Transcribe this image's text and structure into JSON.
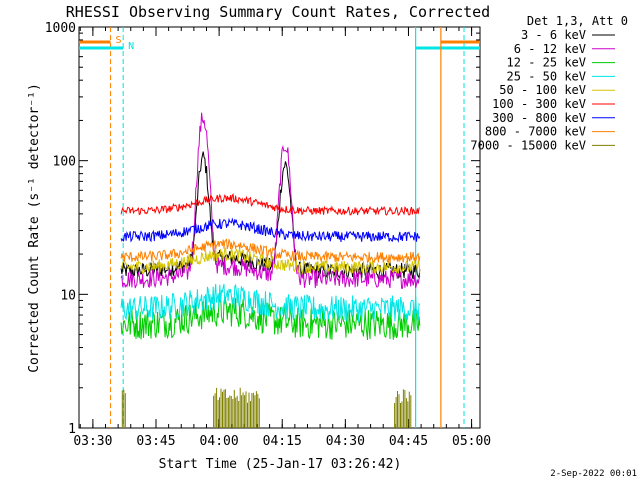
{
  "chart_data": {
    "type": "line",
    "title": "RHESSI Observing Summary Count Rates, Corrected",
    "xlabel": "Start Time (25-Jan-17 03:26:42)",
    "ylabel": "Corrected Count Rate (s⁻¹ detector⁻¹)",
    "yscale": "log",
    "ylim": [
      1,
      1000
    ],
    "xlim_minutes": [
      0,
      95.3
    ],
    "x_ticks": [
      {
        "t": 3.3,
        "label": "03:30"
      },
      {
        "t": 18.3,
        "label": "03:45"
      },
      {
        "t": 33.3,
        "label": "04:00"
      },
      {
        "t": 48.3,
        "label": "04:15"
      },
      {
        "t": 63.3,
        "label": "04:30"
      },
      {
        "t": 78.3,
        "label": "04:45"
      },
      {
        "t": 93.3,
        "label": "05:00"
      }
    ],
    "y_ticks": [
      {
        "v": 1,
        "label": "1"
      },
      {
        "v": 10,
        "label": "10"
      },
      {
        "v": 100,
        "label": "100"
      },
      {
        "v": 1000,
        "label": "1000"
      }
    ],
    "legend_header": "Det 1,3, Att 0",
    "legend_position": "right",
    "footer_date": "2-Sep-2022 00:01",
    "grid": false,
    "data_start_minute": 10,
    "data_end_minute": 81,
    "series": [
      {
        "name": "3 - 6 keV",
        "color": "#000000",
        "base": 15,
        "noise": 0.06,
        "peaks": [
          [
            29.5,
            88
          ],
          [
            49,
            78
          ]
        ]
      },
      {
        "name": "6 - 12 keV",
        "color": "#cc00cc",
        "base": 13,
        "noise": 0.07,
        "peaks": [
          [
            29.5,
            195
          ],
          [
            49,
            120
          ]
        ]
      },
      {
        "name": "12 - 25 keV",
        "color": "#00cc00",
        "base": 6,
        "noise": 0.12
      },
      {
        "name": "25 - 50 keV",
        "color": "#00e5e5",
        "base": 7.8,
        "noise": 0.1
      },
      {
        "name": "50 - 100 keV",
        "color": "#d4c400",
        "base": 16,
        "noise": 0.05
      },
      {
        "name": "100 - 300 keV",
        "color": "#ff0000",
        "base": 42,
        "noise": 0.03
      },
      {
        "name": "300 - 800 keV",
        "color": "#0000ff",
        "base": 27,
        "noise": 0.04
      },
      {
        "name": "800 - 7000 keV",
        "color": "#ff8000",
        "base": 19,
        "noise": 0.04
      },
      {
        "name": "7000 - 15000 keV",
        "color": "#808000",
        "base": 1.5,
        "noise": 0.1
      }
    ],
    "flags": [
      {
        "label": "S",
        "color": "#ff8000",
        "start": 0,
        "end": 7.5
      },
      {
        "label": "N",
        "color": "#00e5e5",
        "start": 0,
        "end": 10.5
      },
      {
        "label": "",
        "color": "#00e5e5",
        "start": 80,
        "end": 95.3
      },
      {
        "label": "",
        "color": "#ff8000",
        "start": 86,
        "end": 95.3
      }
    ]
  }
}
